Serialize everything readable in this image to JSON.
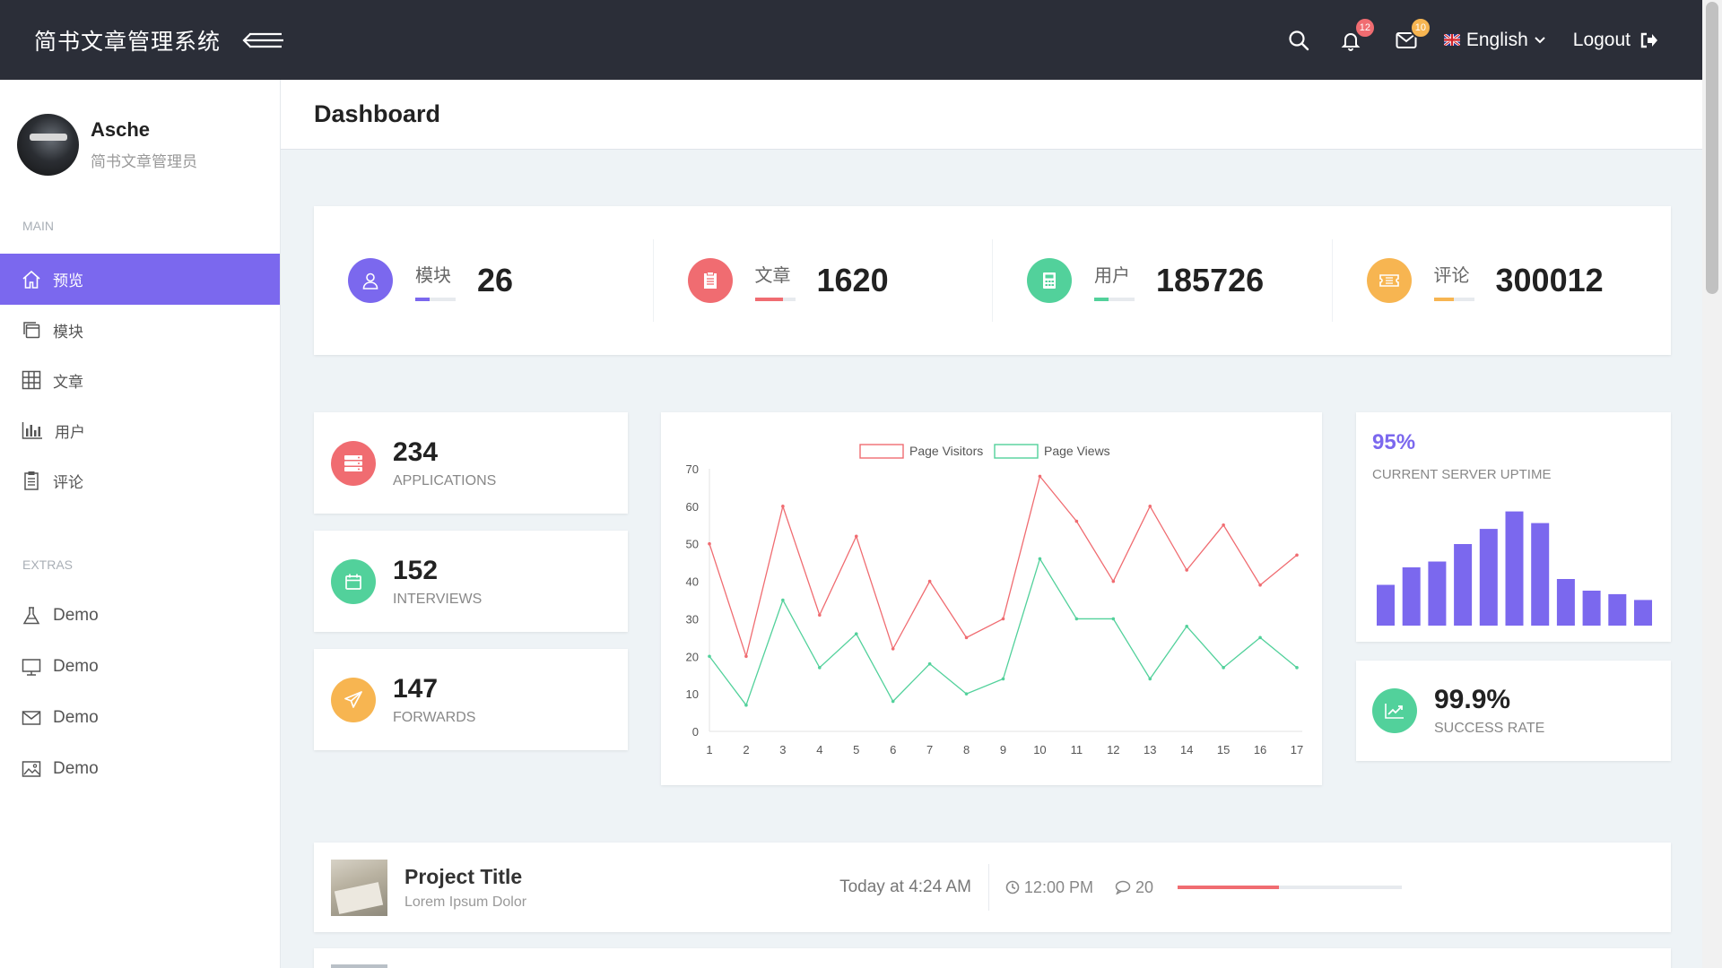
{
  "topbar": {
    "brand": "简书文章管理系统",
    "notifications_count": "12",
    "messages_count": "10",
    "language": "English",
    "logout_label": "Logout"
  },
  "sidebar": {
    "profile": {
      "name": "Asche",
      "role": "简书文章管理员"
    },
    "main_heading": "MAIN",
    "main_items": [
      {
        "label": "预览",
        "icon": "home-icon",
        "active": true
      },
      {
        "label": "模块",
        "icon": "copy-icon"
      },
      {
        "label": "文章",
        "icon": "grid-icon"
      },
      {
        "label": "用户",
        "icon": "bar-chart-icon"
      },
      {
        "label": "评论",
        "icon": "clipboard-icon"
      }
    ],
    "extras_heading": "EXTRAS",
    "extras_items": [
      {
        "label": "Demo",
        "icon": "flask-icon"
      },
      {
        "label": "Demo",
        "icon": "monitor-icon"
      },
      {
        "label": "Demo",
        "icon": "mail-icon"
      },
      {
        "label": "Demo",
        "icon": "image-icon"
      }
    ]
  },
  "page": {
    "title": "Dashboard"
  },
  "stats": [
    {
      "label": "模块",
      "value": "26",
      "color": "#7b68ee",
      "icon": "user-icon",
      "bar_fill": 0.35
    },
    {
      "label": "文章",
      "value": "1620",
      "color": "#f06c71",
      "icon": "clipboard-icon",
      "bar_fill": 0.7
    },
    {
      "label": "用户",
      "value": "185726",
      "color": "#52d19b",
      "icon": "calculator-icon",
      "bar_fill": 0.35
    },
    {
      "label": "评论",
      "value": "300012",
      "color": "#f7b551",
      "icon": "ticket-icon",
      "bar_fill": 0.5
    }
  ],
  "small_cards": [
    {
      "value": "234",
      "label": "APPLICATIONS",
      "color": "#f06c71",
      "icon": "server-icon"
    },
    {
      "value": "152",
      "label": "INTERVIEWS",
      "color": "#52d19b",
      "icon": "calendar-icon"
    },
    {
      "value": "147",
      "label": "FORWARDS",
      "color": "#f7b551",
      "icon": "paper-plane-icon"
    }
  ],
  "uptime": {
    "value": "95%",
    "label": "CURRENT SERVER UPTIME",
    "bars": [
      0.35,
      0.5,
      0.55,
      0.7,
      0.83,
      0.98,
      0.88,
      0.4,
      0.3,
      0.27,
      0.22
    ],
    "color": "#7b68ee"
  },
  "success": {
    "value": "99.9%",
    "label": "SUCCESS RATE",
    "icon": "trend-up-icon"
  },
  "project": {
    "title": "Project Title",
    "subtitle": "Lorem Ipsum Dolor",
    "time": "Today at 4:24 AM",
    "clock": "12:00 PM",
    "comments": "20",
    "progress": 0.45
  },
  "chart_data": {
    "type": "line",
    "x": [
      1,
      2,
      3,
      4,
      5,
      6,
      7,
      8,
      9,
      10,
      11,
      12,
      13,
      14,
      15,
      16,
      17
    ],
    "series": [
      {
        "name": "Page Visitors",
        "color": "#f06c71",
        "values": [
          50,
          20,
          60,
          31,
          52,
          22,
          40,
          25,
          30,
          68,
          56,
          40,
          60,
          43,
          55,
          39,
          47
        ]
      },
      {
        "name": "Page Views",
        "color": "#52d19b",
        "values": [
          20,
          7,
          35,
          17,
          26,
          8,
          18,
          10,
          14,
          46,
          30,
          30,
          14,
          28,
          17,
          25,
          17
        ]
      }
    ],
    "ylim": [
      0,
      70
    ],
    "yticks": [
      0,
      10,
      20,
      30,
      40,
      50,
      60,
      70
    ],
    "legend": "top-center"
  }
}
